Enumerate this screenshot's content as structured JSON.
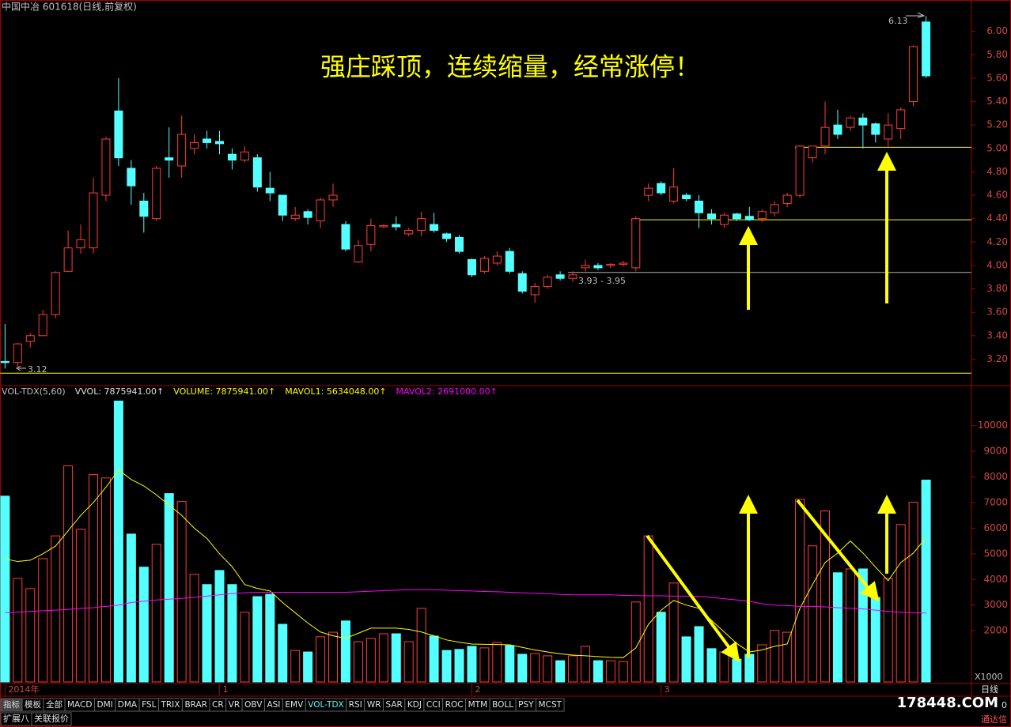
{
  "chart_data": [
    {
      "type": "candlestick",
      "title": "中国中冶 601618(日线,前复权)",
      "annotation": "强庄踩顶，连续缩量，经常涨停！",
      "labels": [
        "6.13",
        "3.12",
        "3.93 - 3.95"
      ],
      "up_color": "#ff3c3c",
      "down_color": "#54ffff",
      "xlim": [
        -0.4,
        76.6
      ],
      "xticks": [
        {
          "value": 0,
          "label": "2014年"
        },
        {
          "value": 17,
          "label": "1"
        },
        {
          "value": 37,
          "label": "2"
        },
        {
          "value": 52,
          "label": "3"
        }
      ],
      "ylim": [
        2.98,
        6.16
      ],
      "yticks": [
        {
          "value": 3.2,
          "label": "3.20"
        },
        {
          "value": 3.4,
          "label": "3.40"
        },
        {
          "value": 3.6,
          "label": "3.60"
        },
        {
          "value": 3.8,
          "label": "3.80"
        },
        {
          "value": 4.0,
          "label": "4.00"
        },
        {
          "value": 4.2,
          "label": "4.20"
        },
        {
          "value": 4.4,
          "label": "4.40"
        },
        {
          "value": 4.6,
          "label": "4.60"
        },
        {
          "value": 4.8,
          "label": "4.80"
        },
        {
          "value": 5.0,
          "label": "5.00"
        },
        {
          "value": 5.2,
          "label": "5.20"
        },
        {
          "value": 5.4,
          "label": "5.40"
        },
        {
          "value": 5.6,
          "label": "5.60"
        },
        {
          "value": 5.8,
          "label": "5.80"
        },
        {
          "value": 6.0,
          "label": "6.00"
        }
      ],
      "levels": [
        {
          "value": 5.01,
          "from": 63,
          "color": "#ffff00"
        },
        {
          "value": 4.39,
          "from": 50,
          "color": "#ffff00"
        },
        {
          "value": 3.94,
          "from": 45,
          "color": "#b0b0b0"
        },
        {
          "value": 3.08,
          "from": 0,
          "color": "#ffff00"
        }
      ],
      "open": [
        3.18,
        3.17,
        3.35,
        3.4,
        3.58,
        3.95,
        4.15,
        4.15,
        4.6,
        5.32,
        4.83,
        4.55,
        4.4,
        4.92,
        4.85,
        5.0,
        5.08,
        5.06,
        4.95,
        4.9,
        4.92,
        4.66,
        4.6,
        4.4,
        4.46,
        4.38,
        4.56,
        4.35,
        4.03,
        4.18,
        4.33,
        4.35,
        4.27,
        4.3,
        4.35,
        4.27,
        4.24,
        4.05,
        3.95,
        4.02,
        4.12,
        3.93,
        3.75,
        3.82,
        3.92,
        3.89,
        3.98,
        4.0,
        4.0,
        4.01,
        3.98,
        4.6,
        4.7,
        4.55,
        4.6,
        4.55,
        4.44,
        4.35,
        4.44,
        4.42,
        4.4,
        4.45,
        4.53,
        4.6,
        4.92,
        5.02,
        5.2,
        5.18,
        5.26,
        5.21,
        5.08,
        5.17,
        5.4,
        6.08
      ],
      "close": [
        3.17,
        3.33,
        3.4,
        3.58,
        3.94,
        4.15,
        4.22,
        4.62,
        5.08,
        4.92,
        4.68,
        4.42,
        4.83,
        4.9,
        5.12,
        5.05,
        5.05,
        5.04,
        4.9,
        4.97,
        4.67,
        4.62,
        4.43,
        4.43,
        4.41,
        4.56,
        4.6,
        4.14,
        4.17,
        4.34,
        4.34,
        4.33,
        4.3,
        4.4,
        4.3,
        4.23,
        4.12,
        3.92,
        4.06,
        4.08,
        3.95,
        3.78,
        3.82,
        3.9,
        3.89,
        3.92,
        4.0,
        3.98,
        4.01,
        4.02,
        4.4,
        4.66,
        4.62,
        4.67,
        4.57,
        4.45,
        4.4,
        4.43,
        4.4,
        4.39,
        4.46,
        4.52,
        4.6,
        5.02,
        5.02,
        5.18,
        5.12,
        5.26,
        5.2,
        5.12,
        5.2,
        5.33,
        5.87,
        5.62
      ],
      "high": [
        3.5,
        3.34,
        3.42,
        3.62,
        3.95,
        4.3,
        4.35,
        4.75,
        5.1,
        5.6,
        4.9,
        4.62,
        4.85,
        5.18,
        5.28,
        5.12,
        5.15,
        5.15,
        5.0,
        5.02,
        4.95,
        4.8,
        4.6,
        4.5,
        4.48,
        4.58,
        4.7,
        4.38,
        4.22,
        4.4,
        4.35,
        4.42,
        4.32,
        4.46,
        4.45,
        4.28,
        4.26,
        4.06,
        4.08,
        4.12,
        4.15,
        3.95,
        3.85,
        3.92,
        3.95,
        3.95,
        4.05,
        4.02,
        4.02,
        4.04,
        4.42,
        4.7,
        4.72,
        4.83,
        4.62,
        4.6,
        4.48,
        4.45,
        4.45,
        4.5,
        4.48,
        4.55,
        4.62,
        5.03,
        5.02,
        5.4,
        5.33,
        5.28,
        5.3,
        5.22,
        5.3,
        5.35,
        5.88,
        6.13
      ],
      "low": [
        3.12,
        3.12,
        3.3,
        3.4,
        3.55,
        3.95,
        4.1,
        4.1,
        4.55,
        4.85,
        4.52,
        4.28,
        4.38,
        4.75,
        4.75,
        4.95,
        5.0,
        4.95,
        4.82,
        4.88,
        4.63,
        4.55,
        4.38,
        4.38,
        4.35,
        4.32,
        4.5,
        4.12,
        4.02,
        4.12,
        4.32,
        4.3,
        4.25,
        4.25,
        4.28,
        4.2,
        4.1,
        3.9,
        3.93,
        4.0,
        3.93,
        3.76,
        3.68,
        3.8,
        3.87,
        3.86,
        3.95,
        3.96,
        3.98,
        3.99,
        3.95,
        4.55,
        4.6,
        4.53,
        4.55,
        4.32,
        4.35,
        4.32,
        4.38,
        4.38,
        4.37,
        4.42,
        4.5,
        4.58,
        4.88,
        4.95,
        5.08,
        5.15,
        5.0,
        5.05,
        5.0,
        5.08,
        5.36,
        5.6
      ]
    },
    {
      "type": "bar",
      "header": [
        {
          "text": "VOL-TDX(5,60)",
          "color": "#c0c0c0"
        },
        {
          "text": "VVOL: 7875941.00↑",
          "color": "#e0e0e0"
        },
        {
          "text": "VOLUME: 7875941.00↑",
          "color": "#ffff00"
        },
        {
          "text": "MAVOL1: 5634048.00↑",
          "color": "#ffff00"
        },
        {
          "text": "MAVOL2: 2691000.00↑",
          "color": "#ff00ff"
        }
      ],
      "unit": "X1000",
      "xlim": [
        -0.4,
        76.6
      ],
      "ylim": [
        0,
        11500
      ],
      "yticks": [
        2000,
        3000,
        4000,
        5000,
        6000,
        7000,
        8000,
        9000,
        10000
      ],
      "series": [
        {
          "type": "bar",
          "values": [
            7250,
            4040,
            3640,
            4810,
            5700,
            8430,
            5960,
            8090,
            7960,
            10960,
            5770,
            4480,
            5370,
            7350,
            7040,
            4200,
            3800,
            4350,
            3800,
            2720,
            3330,
            3420,
            2250,
            1230,
            1170,
            1760,
            1940,
            2380,
            1570,
            1700,
            1880,
            1880,
            1570,
            2870,
            1790,
            1230,
            1270,
            1390,
            1330,
            1540,
            1420,
            1080,
            1110,
            1020,
            830,
            1020,
            1390,
            830,
            830,
            800,
            3120,
            5700,
            2720,
            3860,
            1760,
            2160,
            1300,
            1170,
            890,
            1080,
            1450,
            2010,
            1940,
            7130,
            5310,
            6670,
            4260,
            4410,
            4410,
            3300,
            4040,
            6140,
            7010,
            7876
          ]
        },
        {
          "type": "line",
          "color": "#ffff00",
          "values": [
            4800,
            4700,
            4750,
            5000,
            5300,
            5900,
            6500,
            7000,
            7600,
            8270,
            7900,
            7650,
            7300,
            6900,
            6500,
            6000,
            5600,
            5000,
            4500,
            3800,
            3650,
            3550,
            3100,
            2700,
            2300,
            1950,
            1800,
            1700,
            1900,
            2100,
            2100,
            2100,
            2050,
            1950,
            1800,
            1640,
            1550,
            1480,
            1470,
            1460,
            1450,
            1350,
            1250,
            1170,
            1100,
            1050,
            1020,
            990,
            960,
            950,
            1330,
            2250,
            2800,
            3180,
            3000,
            2870,
            2400,
            1950,
            1500,
            1170,
            1250,
            1390,
            1480,
            2870,
            3800,
            4660,
            5030,
            5500,
            5030,
            4480,
            3950,
            4660,
            5030,
            5634
          ]
        },
        {
          "type": "line",
          "color": "#ff00ff",
          "values": [
            2700,
            2720,
            2750,
            2780,
            2800,
            2830,
            2870,
            2900,
            2950,
            3000,
            3100,
            3150,
            3200,
            3230,
            3260,
            3300,
            3350,
            3400,
            3450,
            3480,
            3500,
            3500,
            3500,
            3500,
            3500,
            3500,
            3500,
            3500,
            3520,
            3540,
            3560,
            3580,
            3600,
            3600,
            3600,
            3580,
            3560,
            3550,
            3530,
            3520,
            3500,
            3480,
            3460,
            3440,
            3420,
            3400,
            3400,
            3400,
            3400,
            3380,
            3370,
            3360,
            3360,
            3350,
            3350,
            3340,
            3300,
            3250,
            3200,
            3150,
            3050,
            3000,
            2980,
            2950,
            2950,
            2930,
            2900,
            2880,
            2850,
            2800,
            2750,
            2720,
            2700,
            2691
          ]
        }
      ]
    }
  ],
  "toolbar": {
    "tabs": [
      "指标",
      "模板",
      "全部",
      "MACD",
      "DMI",
      "DMA",
      "FSL",
      "TRIX",
      "BRAR",
      "CR",
      "VR",
      "OBV",
      "ASI",
      "EMV",
      "VOL-TDX",
      "RSI",
      "WR",
      "SAR",
      "KDJ",
      "CCI",
      "ROC",
      "MTM",
      "BOLL",
      "PSY",
      "MCST"
    ],
    "bottom": [
      "扩展八",
      "关联报价"
    ]
  },
  "footer": {
    "site": "178448.COM",
    "period": "日线",
    "brand": "通达信",
    "zero": "0"
  }
}
